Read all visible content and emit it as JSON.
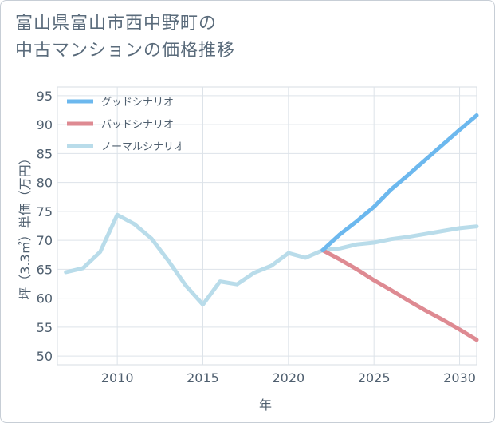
{
  "title_lines": [
    "富山県富山市西中野町の",
    "中古マンションの価格推移"
  ],
  "chart_data": {
    "type": "line",
    "title": "富山県富山市西中野町の中古マンションの価格推移",
    "xlabel": "年",
    "ylabel": "坪（3.3㎡）単価（万円）",
    "xlim": [
      2006.5,
      2031
    ],
    "ylim": [
      48.5,
      96.5
    ],
    "xticks": [
      2010,
      2015,
      2020,
      2025,
      2030
    ],
    "yticks": [
      50,
      55,
      60,
      65,
      70,
      75,
      80,
      85,
      90,
      95
    ],
    "legend_position": "top-left",
    "series": [
      {
        "name": "グッドシナリオ",
        "color": "#6cb8ee",
        "x": [
          2022,
          2023,
          2024,
          2025,
          2026,
          2027,
          2028,
          2029,
          2030,
          2031
        ],
        "y": [
          68.3,
          71.0,
          73.3,
          75.8,
          78.8,
          81.3,
          83.9,
          86.5,
          89.1,
          91.6
        ]
      },
      {
        "name": "バッドシナリオ",
        "color": "#de8a92",
        "x": [
          2022,
          2023,
          2024,
          2025,
          2026,
          2027,
          2028,
          2029,
          2030,
          2031
        ],
        "y": [
          68.3,
          66.7,
          65.0,
          63.1,
          61.4,
          59.6,
          57.9,
          56.3,
          54.6,
          52.8
        ]
      },
      {
        "name": "ノーマルシナリオ",
        "color": "#b9dcea",
        "x": [
          2007,
          2008,
          2009,
          2010,
          2011,
          2012,
          2013,
          2014,
          2015,
          2016,
          2017,
          2018,
          2019,
          2020,
          2021,
          2022,
          2023,
          2024,
          2025,
          2026,
          2027,
          2028,
          2029,
          2030,
          2031
        ],
        "y": [
          64.5,
          65.2,
          68.0,
          74.4,
          72.8,
          70.3,
          66.4,
          62.2,
          58.9,
          62.9,
          62.4,
          64.4,
          65.6,
          67.8,
          67.0,
          68.3,
          68.6,
          69.3,
          69.6,
          70.2,
          70.6,
          71.1,
          71.6,
          72.1,
          72.4
        ]
      }
    ]
  }
}
